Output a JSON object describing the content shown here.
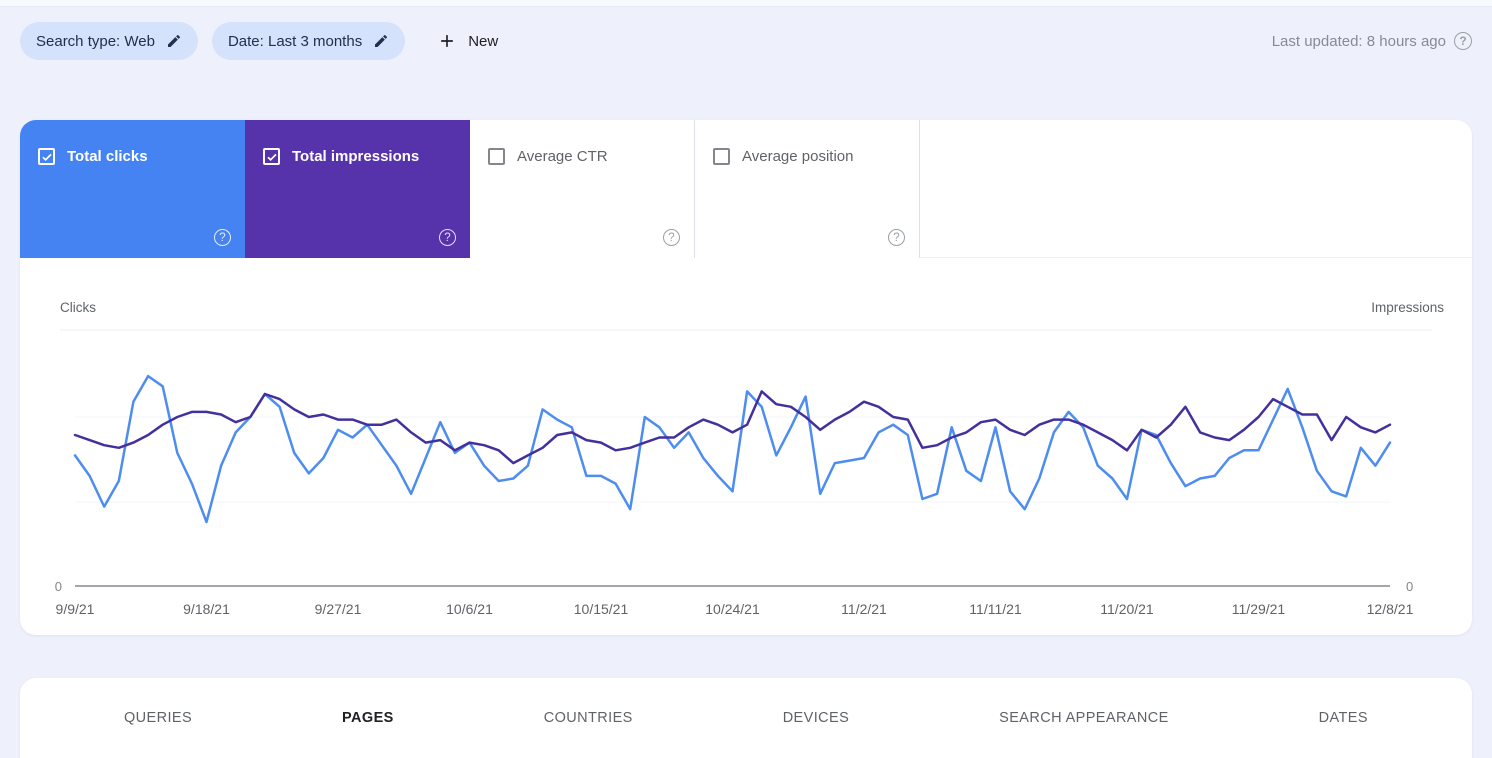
{
  "header": {
    "search_type_chip": "Search type: Web",
    "date_chip": "Date: Last 3 months",
    "new_button": "New",
    "last_updated": "Last updated: 8 hours ago"
  },
  "metrics": {
    "cards": [
      {
        "label": "Total clicks",
        "checked": true,
        "color": "#4683f2"
      },
      {
        "label": "Total impressions",
        "checked": true,
        "color": "#5632ab"
      },
      {
        "label": "Average CTR",
        "checked": false,
        "color": "#ffffff"
      },
      {
        "label": "Average position",
        "checked": false,
        "color": "#ffffff"
      }
    ]
  },
  "chart_data": {
    "type": "line",
    "left_axis_label": "Clicks",
    "right_axis_label": "Impressions",
    "y_left_min_label": "0",
    "y_right_min_label": "0",
    "ylim_relative": [
      0,
      100
    ],
    "grid": "faint-horizontal",
    "legend_position": "none",
    "x_ticks": [
      "9/9/21",
      "9/18/21",
      "9/27/21",
      "10/6/21",
      "10/15/21",
      "10/24/21",
      "11/2/21",
      "11/11/21",
      "11/20/21",
      "11/29/21",
      "12/8/21"
    ],
    "x_note": "daily points from 9/9/21 to 12/8/21, values estimated on 0-100 relative scale (only 0 is labeled on axes)",
    "series": [
      {
        "name": "Total clicks",
        "color": "#4e8df0",
        "values": [
          51,
          43,
          31,
          41,
          72,
          82,
          78,
          52,
          40,
          25,
          47,
          60,
          66,
          75,
          70,
          52,
          44,
          50,
          61,
          58,
          63,
          55,
          47,
          36,
          50,
          64,
          52,
          56,
          47,
          41,
          42,
          47,
          69,
          65,
          62,
          43,
          43,
          40,
          30,
          66,
          62,
          54,
          60,
          50,
          43,
          37,
          76,
          70,
          51,
          62,
          74,
          36,
          48,
          49,
          50,
          60,
          63,
          59,
          34,
          36,
          62,
          45,
          41,
          62,
          37,
          30,
          42,
          60,
          68,
          62,
          47,
          42,
          34,
          61,
          59,
          48,
          39,
          42,
          43,
          50,
          53,
          53,
          65,
          77,
          62,
          45,
          37,
          35,
          54,
          47,
          56
        ]
      },
      {
        "name": "Total impressions",
        "color": "#44309d",
        "values": [
          59,
          57,
          55,
          54,
          56,
          59,
          63,
          66,
          68,
          68,
          67,
          64,
          66,
          75,
          73,
          69,
          66,
          67,
          65,
          65,
          63,
          63,
          65,
          60,
          56,
          57,
          53,
          56,
          55,
          53,
          48,
          51,
          54,
          59,
          60,
          57,
          56,
          53,
          54,
          56,
          58,
          58,
          62,
          65,
          63,
          60,
          63,
          76,
          71,
          70,
          66,
          61,
          65,
          68,
          72,
          70,
          66,
          65,
          54,
          55,
          58,
          60,
          64,
          65,
          61,
          59,
          63,
          65,
          65,
          63,
          60,
          57,
          53,
          61,
          58,
          63,
          70,
          60,
          58,
          57,
          61,
          66,
          73,
          70,
          67,
          67,
          57,
          66,
          62,
          60,
          63
        ]
      }
    ]
  },
  "tabs": {
    "items": [
      {
        "label": "QUERIES",
        "active": false
      },
      {
        "label": "PAGES",
        "active": true
      },
      {
        "label": "COUNTRIES",
        "active": false
      },
      {
        "label": "DEVICES",
        "active": false
      },
      {
        "label": "SEARCH APPEARANCE",
        "active": false
      },
      {
        "label": "DATES",
        "active": false
      }
    ]
  }
}
